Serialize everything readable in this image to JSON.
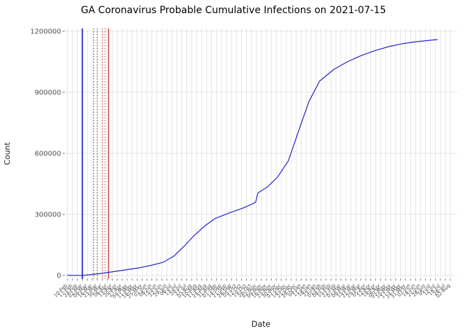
{
  "chart_data": {
    "type": "line",
    "title": "GA Coronavirus Probable Cumulative Infections on 2021-07-15",
    "xlabel": "Date",
    "ylabel": "Count",
    "ylim": [
      0,
      1200000
    ],
    "y_ticks": [
      0,
      300000,
      600000,
      900000,
      1200000
    ],
    "y_tick_labels": [
      "0",
      "300000",
      "600000",
      "900000",
      "1200000"
    ],
    "x_start": "2020-02-10",
    "x_end": "2021-08-02",
    "x_tick_interval_days": 7,
    "x_tick_labels": [
      "10-Feb",
      "17-Feb",
      "24-Feb",
      "02-Mar",
      "09-Mar",
      "16-Mar",
      "23-Mar",
      "30-Mar",
      "06-Apr",
      "13-Apr",
      "20-Apr",
      "27-Apr",
      "04-May",
      "11-May",
      "18-May",
      "25-May",
      "01-Jun",
      "08-Jun",
      "15-Jun",
      "22-Jun",
      "29-Jun",
      "06-Jul",
      "13-Jul",
      "20-Jul",
      "27-Jul",
      "03-Aug",
      "10-Aug",
      "17-Aug",
      "24-Aug",
      "31-Aug",
      "07-Sep",
      "14-Sep",
      "21-Sep",
      "28-Sep",
      "05-Oct",
      "12-Oct",
      "19-Oct",
      "26-Oct",
      "02-Nov",
      "09-Nov",
      "16-Nov",
      "23-Nov",
      "30-Nov",
      "07-Dec",
      "14-Dec",
      "21-Dec",
      "28-Dec",
      "04-Jan",
      "11-Jan",
      "18-Jan",
      "25-Jan",
      "01-Feb",
      "08-Feb",
      "15-Feb",
      "22-Feb",
      "01-Mar",
      "08-Mar",
      "15-Mar",
      "22-Mar",
      "29-Mar",
      "05-Apr",
      "12-Apr",
      "19-Apr",
      "26-Apr",
      "03-May",
      "10-May",
      "17-May",
      "24-May",
      "31-May",
      "07-Jun",
      "14-Jun",
      "21-Jun",
      "28-Jun",
      "05-Jul",
      "12-Jul",
      "19-Jul",
      "26-Jul",
      "02-Aug"
    ],
    "grid": true,
    "legend": "none",
    "colors": {
      "series": "#2222CC",
      "grid": "#E4E4E4",
      "axis_text": "#4D4D4D",
      "axis_title": "#1A1A1A",
      "title": "#000000",
      "tick_mark": "#333333"
    },
    "series": [
      {
        "name": "probable-cumulative-infections",
        "color": "#2222CC",
        "points": [
          [
            "2020-02-10",
            0
          ],
          [
            "2020-03-04",
            500
          ],
          [
            "2020-03-23",
            7000
          ],
          [
            "2020-04-12",
            17000
          ],
          [
            "2020-05-01",
            27000
          ],
          [
            "2020-05-21",
            37000
          ],
          [
            "2020-06-09",
            51000
          ],
          [
            "2020-06-24",
            65000
          ],
          [
            "2020-07-09",
            95000
          ],
          [
            "2020-07-23",
            143000
          ],
          [
            "2020-08-07",
            198000
          ],
          [
            "2020-08-22",
            245000
          ],
          [
            "2020-09-05",
            280000
          ],
          [
            "2020-09-25",
            307000
          ],
          [
            "2020-10-14",
            331000
          ],
          [
            "2020-10-29",
            354000
          ],
          [
            "2020-11-01",
            360000
          ],
          [
            "2020-11-04",
            405000
          ],
          [
            "2020-11-18",
            436000
          ],
          [
            "2020-12-02",
            484000
          ],
          [
            "2020-12-17",
            563000
          ],
          [
            "2021-01-01",
            716000
          ],
          [
            "2021-01-15",
            855000
          ],
          [
            "2021-01-30",
            955000
          ],
          [
            "2021-02-19",
            1012000
          ],
          [
            "2021-03-10",
            1050000
          ],
          [
            "2021-03-30",
            1081000
          ],
          [
            "2021-04-18",
            1105000
          ],
          [
            "2021-05-08",
            1125000
          ],
          [
            "2021-05-27",
            1139000
          ],
          [
            "2021-06-16",
            1149000
          ],
          [
            "2021-07-06",
            1156000
          ],
          [
            "2021-07-15",
            1159000
          ]
        ]
      }
    ],
    "vlines": [
      {
        "date": "2020-03-02",
        "color": "#2222CC",
        "style": "solid",
        "width": 1.8
      },
      {
        "date": "2020-03-18",
        "color": "#333333",
        "style": "dotted",
        "width": 1
      },
      {
        "date": "2020-03-23",
        "color": "#333333",
        "style": "dotted",
        "width": 1
      },
      {
        "date": "2020-03-30",
        "color": "#CC2222",
        "style": "dotted",
        "width": 1
      },
      {
        "date": "2020-04-03",
        "color": "#CC2222",
        "style": "dotted",
        "width": 1
      },
      {
        "date": "2020-04-08",
        "color": "#CC2222",
        "style": "solid",
        "width": 1.2
      }
    ]
  }
}
